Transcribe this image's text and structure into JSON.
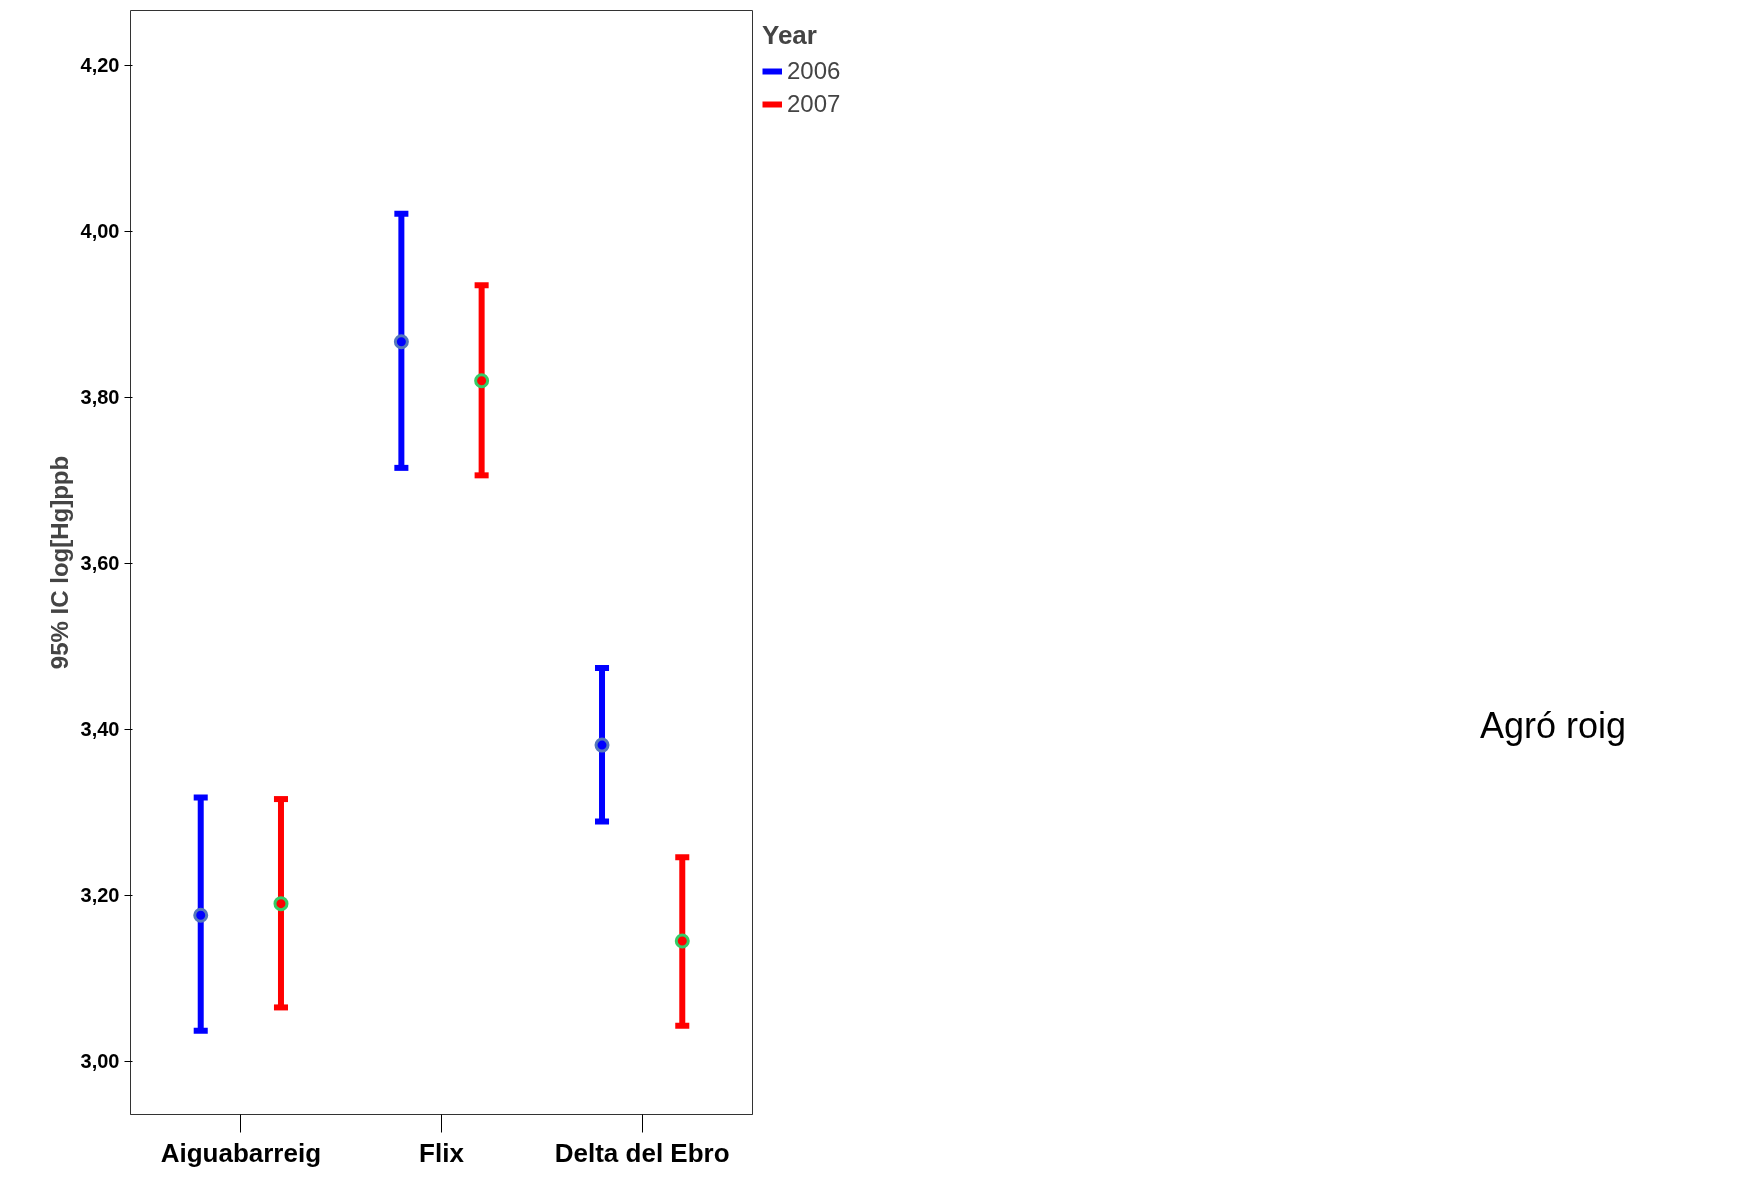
{
  "chart_data": {
    "type": "scatter",
    "ylabel": "95% IC log[Hg]ppb",
    "legend_title": "Year",
    "categories": [
      "Aiguabarreig",
      "Flix",
      "Delta del Ebro"
    ],
    "series": [
      {
        "name": "2006",
        "color": "#0000ff",
        "values": [
          3.176,
          3.867,
          3.381
        ],
        "errors": [
          [
            3.037,
            3.318
          ],
          [
            3.715,
            4.021
          ],
          [
            3.289,
            3.474
          ]
        ]
      },
      {
        "name": "2007",
        "color": "#ff0000",
        "values": [
          3.19,
          3.82,
          3.145
        ],
        "errors": [
          [
            3.065,
            3.316
          ],
          [
            3.706,
            3.935
          ],
          [
            3.043,
            3.246
          ]
        ]
      }
    ],
    "ylim": [
      2.936,
      4.266
    ],
    "yticks": [
      {
        "value": 3.0,
        "label": "3,00"
      },
      {
        "value": 3.2,
        "label": "3,20"
      },
      {
        "value": 3.4,
        "label": "3,40"
      },
      {
        "value": 3.6,
        "label": "3,60"
      },
      {
        "value": 3.8,
        "label": "3,80"
      },
      {
        "value": 4.0,
        "label": "4,00"
      },
      {
        "value": 4.2,
        "label": "4,20"
      }
    ],
    "grid": false,
    "legend": "top right",
    "marker": "circle",
    "annotations": [
      "Agró roig"
    ]
  }
}
